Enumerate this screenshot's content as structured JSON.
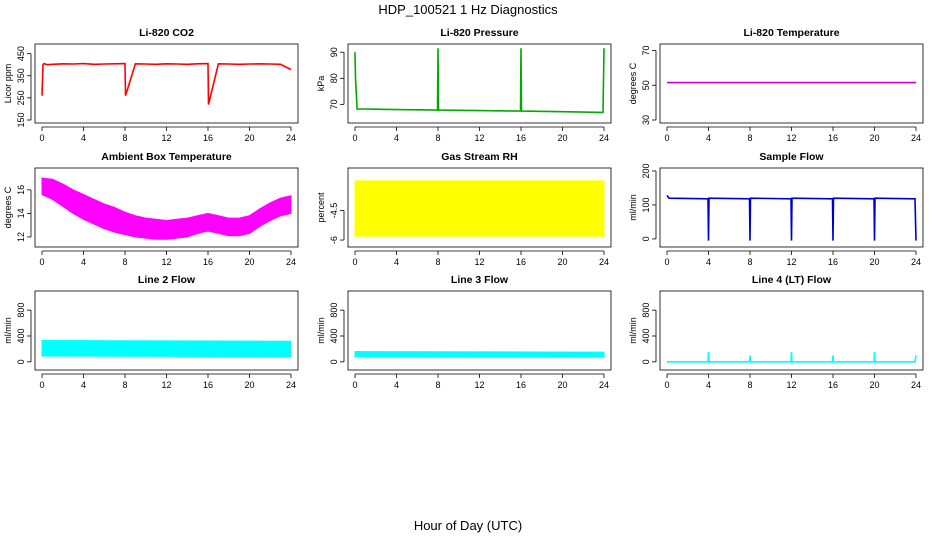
{
  "page": {
    "title": "HDP_100521  1 Hz Diagnostics",
    "x_caption": "Hour of Day (UTC)"
  },
  "chart_data": [
    {
      "type": "line",
      "title": "Li-820 CO2",
      "ylabel": "Licor ppm",
      "xlim": [
        0,
        24
      ],
      "ylim": [
        150,
        480
      ],
      "xticks": [
        0,
        4,
        8,
        12,
        16,
        20,
        24
      ],
      "yticks": [
        150,
        250,
        350,
        450
      ],
      "color": "#ff0000",
      "series": [
        {
          "x": [
            0,
            0.1,
            0.2,
            0.5,
            1,
            2,
            3,
            4,
            5,
            6,
            7,
            8,
            8.05,
            9,
            10,
            11,
            12,
            13,
            14,
            15,
            16,
            16.05,
            17,
            18,
            19,
            20,
            21,
            22,
            23,
            24
          ],
          "y": [
            260,
            400,
            405,
            400,
            402,
            404,
            403,
            405,
            402,
            403,
            404,
            405,
            260,
            404,
            403,
            402,
            404,
            403,
            402,
            404,
            405,
            220,
            404,
            403,
            402,
            403,
            404,
            403,
            402,
            378
          ]
        }
      ]
    },
    {
      "type": "line",
      "title": "Li-820 Pressure",
      "ylabel": "kPa",
      "xlim": [
        0,
        24
      ],
      "ylim": [
        64,
        92
      ],
      "xticks": [
        0,
        4,
        8,
        12,
        16,
        20,
        24
      ],
      "yticks": [
        70,
        80,
        90
      ],
      "color": "#00aa00",
      "series": [
        {
          "x": [
            0,
            0.05,
            0.2,
            1,
            4,
            7.95,
            8,
            8.05,
            12,
            15.95,
            16,
            16.05,
            20,
            23.9,
            24
          ],
          "y": [
            90,
            80,
            68.2,
            68.2,
            68.0,
            67.8,
            91.5,
            67.8,
            67.6,
            67.4,
            91.5,
            67.4,
            67.2,
            66.9,
            91.5
          ]
        }
      ]
    },
    {
      "type": "line",
      "title": "Li-820 Temperature",
      "ylabel": "degrees C",
      "xlim": [
        0,
        24
      ],
      "ylim": [
        30,
        72
      ],
      "xticks": [
        0,
        4,
        8,
        12,
        16,
        20,
        24
      ],
      "yticks": [
        30,
        50,
        70
      ],
      "color": "#cc00cc",
      "series": [
        {
          "x": [
            0,
            24
          ],
          "y": [
            51.5,
            51.5
          ]
        }
      ]
    },
    {
      "type": "area",
      "title": "Ambient Box Temperature",
      "ylabel": "degrees C",
      "xlim": [
        0,
        24
      ],
      "ylim": [
        11.4,
        17.6
      ],
      "xticks": [
        0,
        4,
        8,
        12,
        16,
        20,
        24
      ],
      "yticks": [
        12,
        14,
        16
      ],
      "color": "#ff00ff",
      "series": [
        {
          "x": [
            0,
            1,
            2,
            3,
            4,
            5,
            6,
            7,
            8,
            9,
            10,
            11,
            12,
            13,
            14,
            15,
            16,
            17,
            18,
            19,
            20,
            21,
            22,
            23,
            24
          ],
          "upper": [
            17.0,
            16.9,
            16.5,
            16.0,
            15.6,
            15.2,
            14.8,
            14.5,
            14.1,
            13.8,
            13.6,
            13.5,
            13.4,
            13.5,
            13.6,
            13.8,
            14.0,
            13.8,
            13.6,
            13.6,
            13.8,
            14.4,
            14.9,
            15.3,
            15.5
          ],
          "lower": [
            15.6,
            15.2,
            14.6,
            14.0,
            13.5,
            13.1,
            12.7,
            12.4,
            12.2,
            12.0,
            11.9,
            11.8,
            11.8,
            11.9,
            12.0,
            12.3,
            12.5,
            12.3,
            12.1,
            12.1,
            12.3,
            12.9,
            13.4,
            13.8,
            14.0
          ]
        }
      ]
    },
    {
      "type": "area",
      "title": "Gas Stream RH",
      "ylabel": "percent",
      "xlim": [
        0,
        24
      ],
      "ylim": [
        -6.2,
        -2.5
      ],
      "xticks": [
        0,
        4,
        8,
        12,
        16,
        20,
        24
      ],
      "yticks": [
        -6.0,
        -4.5
      ],
      "color": "#ffff00",
      "series": [
        {
          "x": [
            0,
            24
          ],
          "upper": [
            -3.0,
            -3.0
          ],
          "lower": [
            -5.8,
            -5.8
          ]
        }
      ]
    },
    {
      "type": "line",
      "title": "Sample Flow",
      "ylabel": "ml/min",
      "xlim": [
        0,
        24
      ],
      "ylim": [
        -15,
        200
      ],
      "xticks": [
        0,
        4,
        8,
        12,
        16,
        20,
        24
      ],
      "yticks": [
        0,
        100,
        200
      ],
      "color": "#0000cc",
      "series": [
        {
          "x": [
            0,
            0.2,
            3.95,
            4,
            4.05,
            7.95,
            8,
            8.05,
            11.95,
            12,
            12.05,
            15.95,
            16,
            16.05,
            19.95,
            20,
            20.05,
            23.9,
            24
          ],
          "y": [
            128,
            120,
            118,
            -5,
            120,
            118,
            -5,
            120,
            118,
            -5,
            120,
            118,
            -5,
            120,
            118,
            -5,
            120,
            118,
            -5
          ]
        }
      ]
    },
    {
      "type": "area",
      "title": "Line 2 Flow",
      "ylabel": "ml/min",
      "xlim": [
        0,
        24
      ],
      "ylim": [
        -80,
        1050
      ],
      "xticks": [
        0,
        4,
        8,
        12,
        16,
        20,
        24
      ],
      "yticks": [
        0,
        400,
        800
      ],
      "color": "#00ffff",
      "series": [
        {
          "x": [
            0,
            24
          ],
          "upper": [
            330,
            320
          ],
          "lower": [
            90,
            80
          ]
        }
      ]
    },
    {
      "type": "area",
      "title": "Line 3 Flow",
      "ylabel": "ml/min",
      "xlim": [
        0,
        24
      ],
      "ylim": [
        -80,
        1050
      ],
      "xticks": [
        0,
        4,
        8,
        12,
        16,
        20,
        24
      ],
      "yticks": [
        0,
        400,
        800
      ],
      "color": "#00ffff",
      "series": [
        {
          "x": [
            0,
            24
          ],
          "upper": [
            160,
            150
          ],
          "lower": [
            80,
            70
          ]
        }
      ]
    },
    {
      "type": "line",
      "title": "Line 4 (LT) Flow",
      "ylabel": "ml/min",
      "xlim": [
        0,
        24
      ],
      "ylim": [
        -80,
        1050
      ],
      "xticks": [
        0,
        4,
        8,
        12,
        16,
        20,
        24
      ],
      "yticks": [
        0,
        400,
        800
      ],
      "color": "#00ffff",
      "series": [
        {
          "x": [
            0,
            3.95,
            4,
            4.05,
            7.95,
            8,
            8.05,
            11.95,
            12,
            12.05,
            15.95,
            16,
            16.05,
            19.95,
            20,
            20.05,
            23.9,
            24
          ],
          "y": [
            0,
            0,
            150,
            0,
            0,
            100,
            0,
            0,
            150,
            0,
            0,
            100,
            0,
            0,
            150,
            0,
            0,
            100
          ]
        }
      ]
    }
  ]
}
